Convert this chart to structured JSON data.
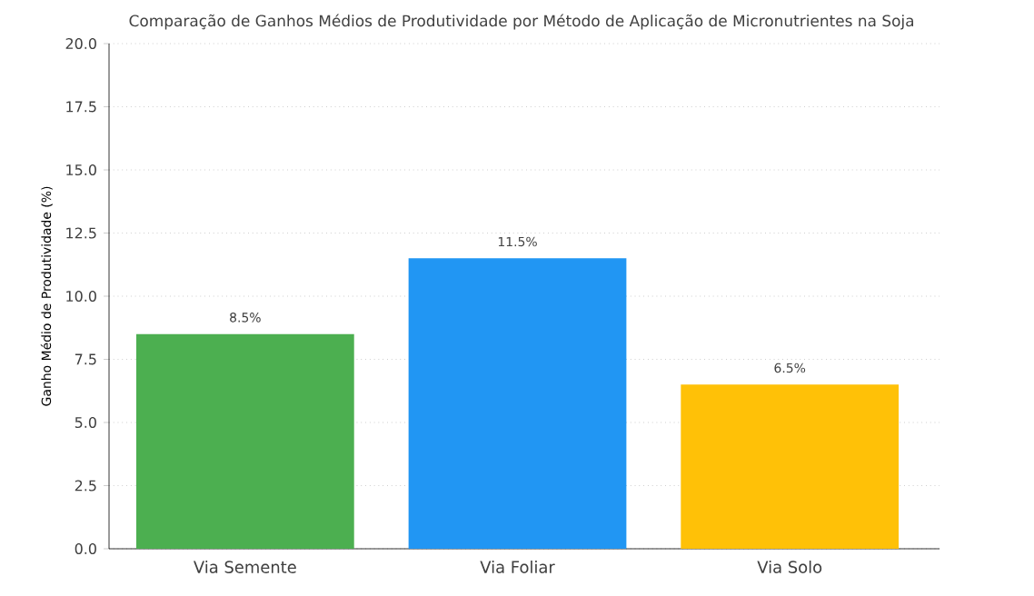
{
  "chart_data": {
    "type": "bar",
    "title": "Comparação de Ganhos Médios de Produtividade por Método de Aplicação de Micronutrientes na Soja",
    "ylabel": "Ganho Médio de Produtividade (%)",
    "categories": [
      "Via Semente",
      "Via Foliar",
      "Via Solo"
    ],
    "values": [
      8.5,
      11.5,
      6.5
    ],
    "colors": [
      "#4caf50",
      "#2196f3",
      "#ffc107"
    ],
    "value_labels": [
      "8.5%",
      "11.5%",
      "6.5%"
    ],
    "ylim": [
      0,
      20
    ],
    "yticks": [
      {
        "value": 0,
        "label": "0.0"
      },
      {
        "value": 2.5,
        "label": "2.5"
      },
      {
        "value": 5,
        "label": "5.0"
      },
      {
        "value": 7.5,
        "label": "7.5"
      },
      {
        "value": 10,
        "label": "10.0"
      },
      {
        "value": 12.5,
        "label": "12.5"
      },
      {
        "value": 15,
        "label": "15.0"
      },
      {
        "value": 17.5,
        "label": "17.5"
      },
      {
        "value": 20,
        "label": "20.0"
      }
    ],
    "grid": "y"
  }
}
